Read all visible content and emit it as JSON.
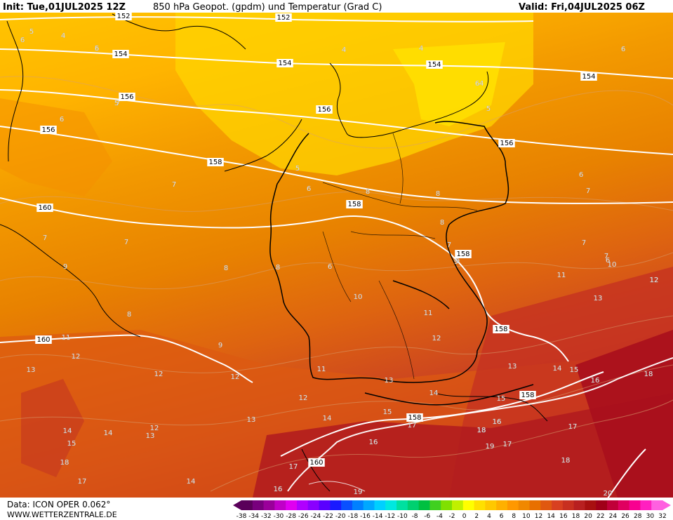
{
  "header": {
    "init": "Init: Tue,01JUL2025 12Z",
    "title": "850 hPa Geopot. (gpdm) und Temperatur (Grad C)",
    "valid": "Valid: Fri,04JUL2025 06Z"
  },
  "footer": {
    "data_label": "Data: ICON OPER 0.062°",
    "website": "WWW.WETTERZENTRALE.DE"
  },
  "colorbar": {
    "colors": [
      "#5a005a",
      "#78007d",
      "#9a009a",
      "#c000c8",
      "#e000f0",
      "#b000ff",
      "#8a00ff",
      "#5a00ff",
      "#1a1aff",
      "#0a50ff",
      "#0080ff",
      "#00a8ff",
      "#00d0ff",
      "#00e8e0",
      "#00e0a0",
      "#00d070",
      "#00c040",
      "#40d020",
      "#80e000",
      "#c0f000",
      "#ffff00",
      "#ffe000",
      "#ffc800",
      "#ffb000",
      "#ff9800",
      "#f08800",
      "#e87000",
      "#e05810",
      "#d84020",
      "#c83020",
      "#b82020",
      "#a81010",
      "#a00018",
      "#c00038",
      "#e00060",
      "#f80090",
      "#ff20c0",
      "#ff60e0"
    ],
    "labels": [
      "-38",
      "-34",
      "-32",
      "-30",
      "-28",
      "-26",
      "-24",
      "-22",
      "-20",
      "-18",
      "-16",
      "-14",
      "-12",
      "-10",
      "-8",
      "-6",
      "-4",
      "-2",
      "0",
      "2",
      "4",
      "6",
      "8",
      "10",
      "12",
      "14",
      "16",
      "18",
      "20",
      "22",
      "24",
      "26",
      "28",
      "30",
      "32"
    ]
  },
  "isotherm_labels": [
    "5",
    "4",
    "6",
    "5",
    "4",
    "4",
    "6",
    "5",
    "6",
    "7",
    "6",
    "8",
    "7",
    "7",
    "8",
    "9",
    "8",
    "7",
    "8",
    "6",
    "7",
    "5",
    "8",
    "6",
    "7",
    "9",
    "6",
    "8",
    "11",
    "12",
    "13",
    "10",
    "11",
    "12",
    "13",
    "14",
    "15",
    "16",
    "17",
    "18",
    "19",
    "12",
    "11",
    "9",
    "12",
    "13",
    "14",
    "12",
    "13",
    "15",
    "17",
    "16",
    "18",
    "14",
    "15",
    "16",
    "17",
    "18",
    "16",
    "14",
    "13",
    "12",
    "11",
    "12",
    "13",
    "14",
    "15",
    "17",
    "18",
    "18",
    "19",
    "20",
    "17",
    "16",
    "14",
    "7",
    "6",
    "9",
    "10",
    "12",
    "5",
    "4",
    "7",
    "6"
  ],
  "geopotential_labels": [
    "152",
    "152",
    "154",
    "154",
    "154",
    "154",
    "156",
    "156",
    "156",
    "156",
    "158",
    "158",
    "158",
    "158",
    "158",
    "158",
    "160",
    "160",
    "160"
  ]
}
